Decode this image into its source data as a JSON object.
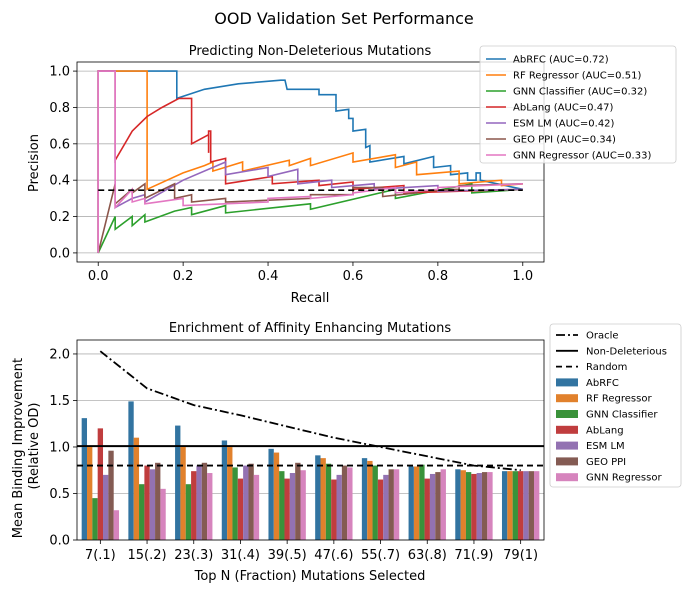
{
  "suptitle": "OOD Validation Set Performance",
  "chart_data": [
    {
      "type": "line",
      "title": "Predicting Non-Deleterious Mutations",
      "xlabel": "Recall",
      "ylabel": "Precision",
      "xlim": [
        -0.05,
        1.05
      ],
      "ylim": [
        -0.05,
        1.05
      ],
      "xticks": [
        "0.0",
        "0.2",
        "0.4",
        "0.6",
        "0.8",
        "1.0"
      ],
      "yticks": [
        "0.0",
        "0.2",
        "0.4",
        "0.6",
        "0.8",
        "1.0"
      ],
      "grid": "horizontal",
      "legend_position": "top-right, outside",
      "baseline": {
        "style": "dashed",
        "color": "#000000",
        "y": 0.345
      },
      "series": [
        {
          "name": "AbRFC (AUC=0.72)",
          "color": "#1f77b4",
          "points": [
            [
              0,
              0
            ],
            [
              0,
              1
            ],
            [
              0.185,
              1
            ],
            [
              0.185,
              0.85
            ],
            [
              0.25,
              0.9
            ],
            [
              0.33,
              0.93
            ],
            [
              0.43,
              0.95
            ],
            [
              0.44,
              0.95
            ],
            [
              0.445,
              0.9
            ],
            [
              0.52,
              0.9
            ],
            [
              0.52,
              0.87
            ],
            [
              0.56,
              0.87
            ],
            [
              0.56,
              0.78
            ],
            [
              0.59,
              0.79
            ],
            [
              0.59,
              0.74
            ],
            [
              0.6,
              0.74
            ],
            [
              0.6,
              0.67
            ],
            [
              0.63,
              0.68
            ],
            [
              0.63,
              0.58
            ],
            [
              0.64,
              0.59
            ],
            [
              0.64,
              0.5
            ],
            [
              0.72,
              0.53
            ],
            [
              0.72,
              0.49
            ],
            [
              0.79,
              0.53
            ],
            [
              0.79,
              0.47
            ],
            [
              0.83,
              0.48
            ],
            [
              0.83,
              0.43
            ],
            [
              0.87,
              0.44
            ],
            [
              0.87,
              0.4
            ],
            [
              0.89,
              0.4
            ],
            [
              0.89,
              0.44
            ],
            [
              0.9,
              0.44
            ],
            [
              0.9,
              0.4
            ],
            [
              1,
              0.35
            ]
          ]
        },
        {
          "name": "RF Regressor (AUC=0.51)",
          "color": "#ff7f0e",
          "points": [
            [
              0,
              0
            ],
            [
              0,
              1
            ],
            [
              0.115,
              1
            ],
            [
              0.115,
              0.35
            ],
            [
              0.2,
              0.44
            ],
            [
              0.25,
              0.48
            ],
            [
              0.27,
              0.5
            ],
            [
              0.27,
              0.45
            ],
            [
              0.34,
              0.5
            ],
            [
              0.34,
              0.45
            ],
            [
              0.45,
              0.51
            ],
            [
              0.45,
              0.48
            ],
            [
              0.5,
              0.52
            ],
            [
              0.5,
              0.48
            ],
            [
              0.6,
              0.55
            ],
            [
              0.6,
              0.5
            ],
            [
              0.7,
              0.54
            ],
            [
              0.7,
              0.47
            ],
            [
              0.75,
              0.5
            ],
            [
              0.75,
              0.43
            ],
            [
              0.85,
              0.45
            ],
            [
              0.85,
              0.38
            ],
            [
              0.95,
              0.4
            ],
            [
              0.95,
              0.37
            ],
            [
              1,
              0.38
            ]
          ]
        },
        {
          "name": "GNN Classifier (AUC=0.32)",
          "color": "#2ca02c",
          "points": [
            [
              0,
              0
            ],
            [
              0.04,
              0.2
            ],
            [
              0.04,
              0.13
            ],
            [
              0.08,
              0.2
            ],
            [
              0.08,
              0.15
            ],
            [
              0.11,
              0.21
            ],
            [
              0.11,
              0.17
            ],
            [
              0.18,
              0.23
            ],
            [
              0.22,
              0.25
            ],
            [
              0.22,
              0.21
            ],
            [
              0.3,
              0.26
            ],
            [
              0.3,
              0.22
            ],
            [
              0.5,
              0.27
            ],
            [
              0.5,
              0.24
            ],
            [
              0.7,
              0.35
            ],
            [
              0.7,
              0.3
            ],
            [
              0.88,
              0.38
            ],
            [
              0.88,
              0.33
            ],
            [
              1,
              0.35
            ]
          ]
        },
        {
          "name": "AbLang (AUC=0.47)",
          "color": "#d62728",
          "points": [
            [
              0,
              0
            ],
            [
              0,
              1
            ],
            [
              0.04,
              1
            ],
            [
              0.04,
              0.51
            ],
            [
              0.08,
              0.67
            ],
            [
              0.115,
              0.75
            ],
            [
              0.15,
              0.8
            ],
            [
              0.19,
              0.85
            ],
            [
              0.22,
              0.85
            ],
            [
              0.22,
              0.6
            ],
            [
              0.26,
              0.65
            ],
            [
              0.26,
              0.55
            ],
            [
              0.26,
              0.63
            ],
            [
              0.26,
              0.67
            ],
            [
              0.26,
              0.6
            ],
            [
              0.26,
              0.58
            ],
            [
              0.26,
              0.6
            ],
            [
              0.26,
              0.67
            ],
            [
              0.26,
              0.55
            ],
            [
              0.26,
              0.6
            ],
            [
              0.26,
              0.66
            ],
            [
              0.26,
              0.6
            ],
            [
              0.26,
              0.58
            ],
            [
              0.26,
              0.6
            ],
            [
              0.26,
              0.67
            ],
            [
              0.265,
              0.67
            ],
            [
              0.265,
              0.5
            ],
            [
              0.3,
              0.52
            ],
            [
              0.3,
              0.38
            ],
            [
              0.41,
              0.42
            ],
            [
              0.41,
              0.38
            ],
            [
              0.52,
              0.4
            ],
            [
              0.52,
              0.37
            ],
            [
              0.6,
              0.39
            ],
            [
              0.6,
              0.35
            ],
            [
              0.72,
              0.37
            ],
            [
              0.72,
              0.33
            ],
            [
              1,
              0.35
            ]
          ]
        },
        {
          "name": "ESM LM (AUC=0.42)",
          "color": "#9467bd",
          "points": [
            [
              0,
              0
            ],
            [
              0,
              1
            ],
            [
              0.04,
              1
            ],
            [
              0.04,
              0.25
            ],
            [
              0.08,
              0.3
            ],
            [
              0.11,
              0.32
            ],
            [
              0.11,
              0.28
            ],
            [
              0.2,
              0.4
            ],
            [
              0.3,
              0.5
            ],
            [
              0.3,
              0.43
            ],
            [
              0.4,
              0.47
            ],
            [
              0.4,
              0.42
            ],
            [
              0.47,
              0.46
            ],
            [
              0.47,
              0.38
            ],
            [
              0.55,
              0.4
            ],
            [
              0.55,
              0.36
            ],
            [
              0.65,
              0.38
            ],
            [
              0.65,
              0.35
            ],
            [
              0.8,
              0.37
            ],
            [
              0.8,
              0.34
            ],
            [
              1,
              0.35
            ]
          ]
        },
        {
          "name": "GEO PPI (AUC=0.34)",
          "color": "#8c564b",
          "points": [
            [
              0,
              0
            ],
            [
              0.04,
              0.38
            ],
            [
              0.04,
              0.27
            ],
            [
              0.08,
              0.35
            ],
            [
              0.08,
              0.33
            ],
            [
              0.11,
              0.38
            ],
            [
              0.11,
              0.3
            ],
            [
              0.18,
              0.38
            ],
            [
              0.18,
              0.3
            ],
            [
              0.22,
              0.32
            ],
            [
              0.22,
              0.28
            ],
            [
              0.3,
              0.3
            ],
            [
              0.3,
              0.28
            ],
            [
              0.5,
              0.3
            ],
            [
              0.5,
              0.32
            ],
            [
              0.6,
              0.32
            ],
            [
              0.6,
              0.36
            ],
            [
              0.67,
              0.36
            ],
            [
              0.67,
              0.31
            ],
            [
              0.75,
              0.33
            ],
            [
              0.75,
              0.34
            ],
            [
              0.85,
              0.35
            ],
            [
              0.85,
              0.37
            ],
            [
              1,
              0.38
            ]
          ]
        },
        {
          "name": "GNN Regressor (AUC=0.33)",
          "color": "#e377c2",
          "points": [
            [
              0,
              0
            ],
            [
              0,
              1
            ],
            [
              0.04,
              1
            ],
            [
              0.04,
              0.25
            ],
            [
              0.08,
              0.35
            ],
            [
              0.08,
              0.28
            ],
            [
              0.11,
              0.3
            ],
            [
              0.11,
              0.27
            ],
            [
              0.2,
              0.3
            ],
            [
              0.2,
              0.26
            ],
            [
              0.4,
              0.28
            ],
            [
              0.4,
              0.3
            ],
            [
              0.5,
              0.31
            ],
            [
              0.5,
              0.3
            ],
            [
              0.6,
              0.32
            ],
            [
              0.6,
              0.33
            ],
            [
              0.7,
              0.36
            ],
            [
              0.7,
              0.33
            ],
            [
              0.8,
              0.35
            ],
            [
              0.8,
              0.36
            ],
            [
              1,
              0.38
            ]
          ]
        }
      ]
    },
    {
      "type": "bar",
      "title": "Enrichment of Affinity Enhancing Mutations",
      "xlabel": "Top N (Fraction) Mutations Selected",
      "ylabel": "Mean Binding Improvement\n(Relative OD)",
      "ylim": [
        0,
        2.15
      ],
      "yticks": [
        "0.0",
        "0.5",
        "1.0",
        "1.5",
        "2.0"
      ],
      "grid": "horizontal",
      "legend_position": "top-right, outside",
      "categories": [
        "7(.1)",
        "15(.2)",
        "23(.3)",
        "31(.4)",
        "39(.5)",
        "47(.6)",
        "55(.7)",
        "63(.8)",
        "71(.9)",
        "79(1)"
      ],
      "lines": [
        {
          "name": "Oracle",
          "style": "dash-dot",
          "color": "#000000",
          "values": [
            2.03,
            1.63,
            1.45,
            1.34,
            1.22,
            1.1,
            1.0,
            0.9,
            0.8,
            0.75
          ]
        },
        {
          "name": "Non-Deleterious",
          "style": "solid",
          "color": "#000000",
          "y": 1.01
        },
        {
          "name": "Random",
          "style": "dashed",
          "color": "#000000",
          "y": 0.8
        }
      ],
      "series": [
        {
          "name": "AbRFC",
          "color": "#3274a1",
          "values": [
            1.31,
            1.49,
            1.23,
            1.07,
            0.98,
            0.91,
            0.88,
            0.79,
            0.76,
            0.74
          ]
        },
        {
          "name": "RF Regressor",
          "color": "#e1812c",
          "values": [
            1.01,
            1.1,
            1.0,
            1.0,
            0.94,
            0.88,
            0.85,
            0.79,
            0.75,
            0.74
          ]
        },
        {
          "name": "GNN Classifier",
          "color": "#3a923a",
          "values": [
            0.45,
            0.6,
            0.6,
            0.78,
            0.74,
            0.82,
            0.8,
            0.81,
            0.73,
            0.74
          ]
        },
        {
          "name": "AbLang",
          "color": "#c03d3e",
          "values": [
            1.2,
            0.8,
            0.74,
            0.66,
            0.66,
            0.65,
            0.65,
            0.66,
            0.71,
            0.74
          ]
        },
        {
          "name": "ESM LM",
          "color": "#9372b2",
          "values": [
            0.7,
            0.76,
            0.8,
            0.8,
            0.72,
            0.7,
            0.7,
            0.71,
            0.72,
            0.74
          ]
        },
        {
          "name": "GEO PPI",
          "color": "#845b53",
          "values": [
            0.96,
            0.83,
            0.83,
            0.82,
            0.83,
            0.8,
            0.76,
            0.73,
            0.73,
            0.74
          ]
        },
        {
          "name": "GNN Regressor",
          "color": "#d684bd",
          "values": [
            0.32,
            0.55,
            0.72,
            0.7,
            0.75,
            0.78,
            0.76,
            0.76,
            0.73,
            0.74
          ]
        }
      ]
    }
  ]
}
